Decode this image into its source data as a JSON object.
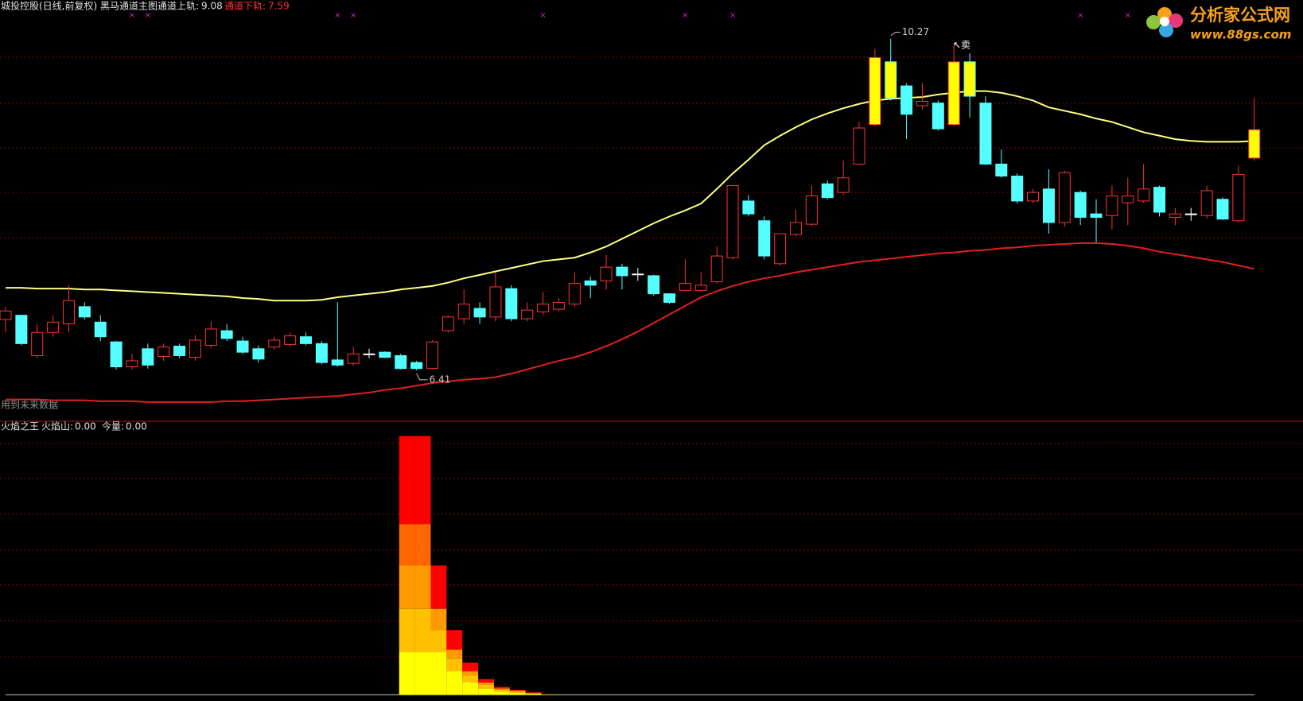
{
  "header": {
    "title": "城投控股(日线,前复权) 黑马通道主图",
    "upper_label": "通道上轨:",
    "upper_value": 9.08,
    "lower_label": "通道下轨:",
    "lower_value": 7.59
  },
  "note": "用到未来数据",
  "logo": {
    "name": "分析家公式网",
    "url": "www.88gs.com"
  },
  "chart_data": [
    {
      "type": "candlestick",
      "open": [
        7.0,
        7.05,
        6.58,
        6.85,
        6.95,
        7.15,
        6.97,
        6.74,
        6.45,
        6.66,
        6.57,
        6.69,
        6.56,
        6.7,
        6.87,
        6.75,
        6.66,
        6.68,
        6.71,
        6.8,
        6.72,
        6.53,
        6.49,
        6.6,
        6.62,
        6.58,
        6.5,
        6.43,
        6.87,
        7.01,
        7.13,
        7.03,
        7.36,
        7.01,
        7.09,
        7.12,
        7.18,
        7.45,
        7.45,
        7.61,
        7.53,
        7.51,
        7.3,
        7.34,
        7.34,
        7.44,
        7.72,
        8.38,
        8.15,
        7.65,
        7.99,
        8.11,
        8.58,
        8.48,
        8.81,
        9.27,
        10.0,
        9.72,
        9.49,
        9.52,
        9.27,
        10.0,
        9.52,
        8.81,
        8.67,
        8.38,
        8.52,
        8.13,
        8.48,
        8.23,
        8.21,
        8.36,
        8.38,
        8.54,
        8.19,
        8.23,
        8.21,
        8.4,
        8.15,
        8.88
      ],
      "high": [
        7.15,
        7.05,
        6.95,
        7.05,
        7.4,
        7.2,
        7.05,
        6.75,
        6.6,
        6.72,
        6.72,
        6.72,
        6.82,
        6.98,
        6.95,
        6.8,
        6.7,
        6.8,
        6.85,
        6.85,
        6.75,
        7.2,
        6.68,
        6.66,
        6.63,
        6.6,
        6.52,
        6.76,
        7.05,
        7.35,
        7.2,
        7.55,
        7.4,
        7.2,
        7.32,
        7.25,
        7.55,
        7.5,
        7.75,
        7.65,
        7.6,
        7.52,
        7.3,
        7.7,
        7.55,
        7.85,
        8.56,
        8.45,
        8.2,
        8.0,
        8.28,
        8.56,
        8.62,
        8.85,
        9.3,
        10.15,
        10.27,
        9.75,
        9.75,
        9.55,
        10.2,
        10.1,
        9.6,
        8.98,
        8.7,
        8.52,
        8.75,
        8.73,
        8.5,
        8.4,
        8.56,
        8.65,
        8.81,
        8.56,
        8.3,
        8.3,
        8.56,
        8.42,
        8.79,
        9.58
      ],
      "low": [
        6.85,
        6.7,
        6.55,
        6.8,
        6.85,
        7.0,
        6.75,
        6.42,
        6.42,
        6.43,
        6.52,
        6.55,
        6.52,
        6.67,
        6.75,
        6.6,
        6.5,
        6.65,
        6.68,
        6.7,
        6.48,
        6.45,
        6.46,
        6.55,
        6.55,
        6.42,
        6.41,
        6.42,
        6.85,
        6.95,
        6.95,
        6.98,
        6.98,
        6.98,
        7.05,
        7.1,
        7.15,
        7.25,
        7.35,
        7.35,
        7.45,
        7.28,
        7.18,
        7.33,
        7.33,
        7.42,
        7.7,
        8.2,
        7.7,
        7.63,
        7.97,
        8.09,
        8.4,
        8.45,
        8.8,
        9.25,
        9.55,
        9.1,
        9.45,
        9.2,
        9.25,
        9.35,
        8.8,
        8.65,
        8.35,
        8.36,
        8.0,
        8.08,
        8.1,
        7.9,
        8.05,
        8.1,
        8.36,
        8.2,
        8.1,
        8.15,
        8.18,
        8.16,
        8.13,
        8.85
      ],
      "close": [
        7.1,
        6.72,
        6.85,
        6.97,
        7.22,
        7.03,
        6.8,
        6.45,
        6.52,
        6.47,
        6.68,
        6.58,
        6.76,
        6.89,
        6.78,
        6.62,
        6.54,
        6.76,
        6.81,
        6.72,
        6.5,
        6.47,
        6.6,
        6.6,
        6.56,
        6.43,
        6.43,
        6.74,
        7.03,
        7.18,
        7.03,
        7.38,
        7.01,
        7.11,
        7.18,
        7.2,
        7.42,
        7.4,
        7.61,
        7.51,
        7.53,
        7.3,
        7.2,
        7.42,
        7.4,
        7.74,
        8.56,
        8.23,
        7.74,
        8.0,
        8.13,
        8.44,
        8.42,
        8.65,
        9.23,
        10.05,
        9.58,
        9.39,
        9.54,
        9.22,
        10.0,
        9.6,
        8.81,
        8.67,
        8.38,
        8.48,
        8.13,
        8.71,
        8.19,
        8.19,
        8.44,
        8.44,
        8.52,
        8.25,
        8.23,
        8.23,
        8.5,
        8.17,
        8.69,
        9.21
      ],
      "up_color": "#ff3232",
      "down_color": "#54ffff",
      "flat_color": "#ffffff",
      "highlight": [
        55,
        56,
        60,
        61,
        79
      ],
      "highlight_color": "#ffff00",
      "bands": [
        {
          "color": "#ffff80",
          "values": [
            7.37,
            7.37,
            7.36,
            7.36,
            7.36,
            7.35,
            7.35,
            7.34,
            7.33,
            7.32,
            7.31,
            7.3,
            7.29,
            7.28,
            7.27,
            7.25,
            7.24,
            7.22,
            7.22,
            7.22,
            7.23,
            7.26,
            7.28,
            7.3,
            7.32,
            7.35,
            7.37,
            7.39,
            7.43,
            7.48,
            7.52,
            7.56,
            7.6,
            7.64,
            7.68,
            7.7,
            7.72,
            7.78,
            7.85,
            7.94,
            8.03,
            8.12,
            8.2,
            8.27,
            8.35,
            8.52,
            8.7,
            8.86,
            9.03,
            9.14,
            9.24,
            9.33,
            9.4,
            9.46,
            9.51,
            9.55,
            9.57,
            9.58,
            9.59,
            9.62,
            9.64,
            9.66,
            9.66,
            9.64,
            9.6,
            9.55,
            9.47,
            9.43,
            9.39,
            9.34,
            9.3,
            9.24,
            9.18,
            9.14,
            9.1,
            9.08,
            9.07,
            9.07,
            9.07,
            9.08
          ]
        },
        {
          "color": "#e02020",
          "values": [
            6.07,
            6.07,
            6.07,
            6.06,
            6.06,
            6.06,
            6.05,
            6.05,
            6.05,
            6.04,
            6.04,
            6.04,
            6.04,
            6.04,
            6.05,
            6.05,
            6.06,
            6.07,
            6.08,
            6.09,
            6.1,
            6.11,
            6.13,
            6.15,
            6.18,
            6.2,
            6.23,
            6.26,
            6.28,
            6.3,
            6.31,
            6.33,
            6.37,
            6.42,
            6.47,
            6.52,
            6.56,
            6.62,
            6.69,
            6.77,
            6.86,
            6.96,
            7.06,
            7.16,
            7.26,
            7.33,
            7.39,
            7.44,
            7.48,
            7.51,
            7.55,
            7.58,
            7.61,
            7.64,
            7.67,
            7.69,
            7.71,
            7.73,
            7.75,
            7.77,
            7.78,
            7.8,
            7.81,
            7.83,
            7.84,
            7.86,
            7.87,
            7.88,
            7.89,
            7.89,
            7.88,
            7.86,
            7.83,
            7.79,
            7.76,
            7.73,
            7.7,
            7.67,
            7.63,
            7.59
          ]
        }
      ],
      "max_label": 10.27,
      "min_label": 6.41,
      "sell_label": "↖卖",
      "signals": [
        8,
        9,
        21,
        22,
        34,
        43,
        46,
        68,
        71
      ],
      "signal_symbol": "×",
      "signal_color": "#d020d0",
      "ylim": [
        5.82,
        10.72
      ]
    },
    {
      "type": "stacked-bar",
      "title": "火焰之王",
      "readouts": [
        {
          "label": "火焰山:",
          "value": "0.00"
        },
        {
          "label": "今量:",
          "value": "0.00"
        }
      ],
      "x": [
        25,
        26,
        27,
        28,
        29,
        30,
        31,
        32,
        33,
        34
      ],
      "series": [
        {
          "color": "#ffff00",
          "values": [
            1,
            1,
            1,
            0.55,
            0.3,
            0.15,
            0.08,
            0.05,
            0.03,
            0.01
          ]
        },
        {
          "color": "#ffc000",
          "values": [
            1,
            1,
            0.5,
            0.3,
            0.15,
            0.08,
            0.04,
            0.03,
            0.01,
            0.005
          ]
        },
        {
          "color": "#ff9900",
          "values": [
            1,
            1,
            0.5,
            0.2,
            0.1,
            0.06,
            0.03,
            0.02,
            0.01,
            0
          ]
        },
        {
          "color": "#ff6600",
          "values": [
            0.96,
            0.96,
            0,
            0,
            0,
            0,
            0,
            0,
            0,
            0
          ]
        },
        {
          "color": "#ff0000",
          "values": [
            2.04,
            2.04,
            1,
            0.45,
            0.2,
            0.08,
            0.04,
            0.02,
            0.01,
            0.005
          ]
        }
      ],
      "ylim": [
        0,
        6.35
      ]
    }
  ]
}
